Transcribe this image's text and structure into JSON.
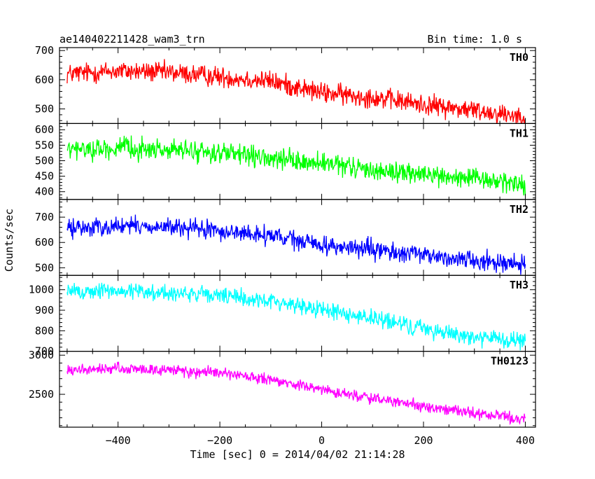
{
  "header": {
    "title": "ae140402211428_wam3_trn",
    "bin_time": "Bin time: 1.0 s"
  },
  "axes": {
    "ylabel": "Counts/sec",
    "xlabel": "Time [sec] 0 = 2014/04/02 21:14:28",
    "xlim": [
      -515,
      420
    ],
    "xticks": [
      -400,
      -200,
      0,
      200,
      400
    ],
    "xtick_labels": [
      "−400",
      "−200",
      "0",
      "200",
      "400"
    ]
  },
  "chart_data": [
    {
      "type": "line",
      "name": "TH0",
      "color": "#ff0000",
      "ylim": [
        450,
        710
      ],
      "yticks": [
        500,
        600,
        700
      ],
      "x_range": [
        -500,
        400
      ],
      "trend_x": [
        -500,
        -400,
        -300,
        -200,
        -100,
        0,
        100,
        200,
        300,
        400
      ],
      "trend_y": [
        620,
        630,
        625,
        610,
        595,
        555,
        540,
        515,
        495,
        475
      ],
      "noise_amplitude": 32
    },
    {
      "type": "line",
      "name": "TH1",
      "color": "#00ff00",
      "ylim": [
        375,
        620
      ],
      "yticks": [
        400,
        450,
        500,
        550,
        600
      ],
      "x_range": [
        -500,
        400
      ],
      "trend_x": [
        -500,
        -400,
        -300,
        -200,
        -100,
        0,
        100,
        200,
        300,
        400
      ],
      "trend_y": [
        535,
        540,
        535,
        525,
        505,
        490,
        470,
        455,
        440,
        425
      ],
      "noise_amplitude": 30
    },
    {
      "type": "line",
      "name": "TH2",
      "color": "#0000ff",
      "ylim": [
        470,
        770
      ],
      "yticks": [
        500,
        600,
        700
      ],
      "x_range": [
        -500,
        400
      ],
      "trend_x": [
        -500,
        -400,
        -300,
        -200,
        -100,
        0,
        100,
        200,
        300,
        400
      ],
      "trend_y": [
        655,
        665,
        660,
        645,
        625,
        590,
        570,
        550,
        530,
        515
      ],
      "noise_amplitude": 33
    },
    {
      "type": "line",
      "name": "TH3",
      "color": "#00ffff",
      "ylim": [
        700,
        1070
      ],
      "yticks": [
        700,
        800,
        900,
        1000
      ],
      "x_range": [
        -500,
        400
      ],
      "trend_x": [
        -500,
        -400,
        -300,
        -200,
        -100,
        0,
        100,
        200,
        300,
        400
      ],
      "trend_y": [
        990,
        995,
        985,
        970,
        945,
        905,
        860,
        810,
        770,
        745
      ],
      "noise_amplitude": 38
    },
    {
      "type": "line",
      "name": "TH0123",
      "color": "#ff00ff",
      "ylim": [
        2080,
        3050
      ],
      "yticks": [
        2500,
        3000
      ],
      "x_range": [
        -500,
        400
      ],
      "trend_x": [
        -500,
        -400,
        -300,
        -200,
        -100,
        0,
        100,
        200,
        300,
        400
      ],
      "trend_y": [
        2800,
        2830,
        2810,
        2770,
        2680,
        2560,
        2450,
        2340,
        2260,
        2180
      ],
      "noise_amplitude": 65
    }
  ]
}
